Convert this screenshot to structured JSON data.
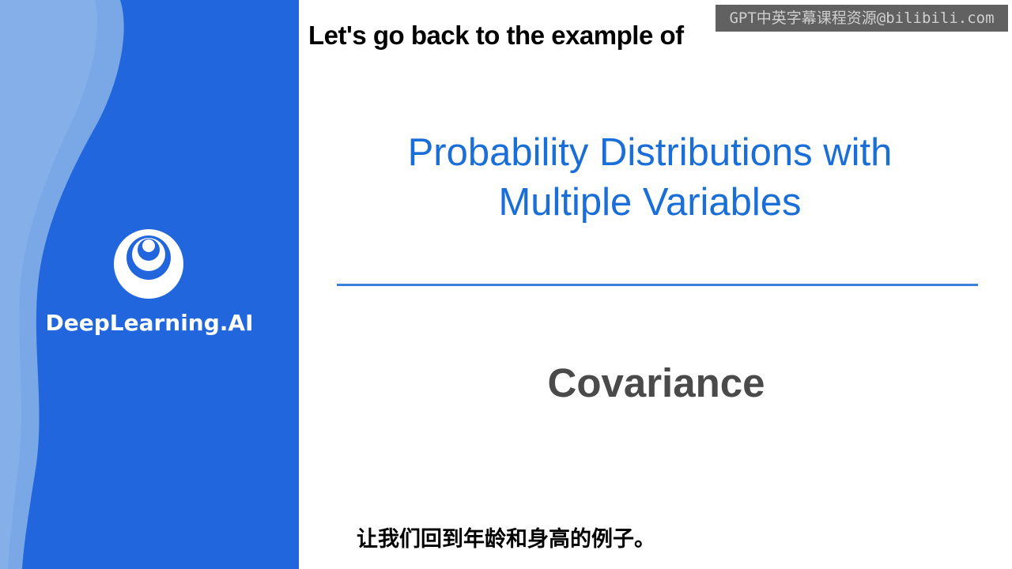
{
  "brand": {
    "name": "DeepLearning.AI",
    "logo_icon": "deeplearning-ai-logo-icon",
    "sidebar_color_dark": "#1f66dc",
    "sidebar_color_light": "#7aa8e6"
  },
  "watermark": {
    "text": "GPT中英字幕课程资源@bilibili.com"
  },
  "subtitles": {
    "english": "Let's go back to the example of",
    "chinese": "让我们回到年龄和身高的例子。"
  },
  "slide": {
    "title_line1": "Probability Distributions with",
    "title_line2": "Multiple Variables",
    "section": "Covariance",
    "title_color": "#1a6ed8",
    "divider_color": "#3b7fd9",
    "section_color": "#4a4a4a"
  }
}
